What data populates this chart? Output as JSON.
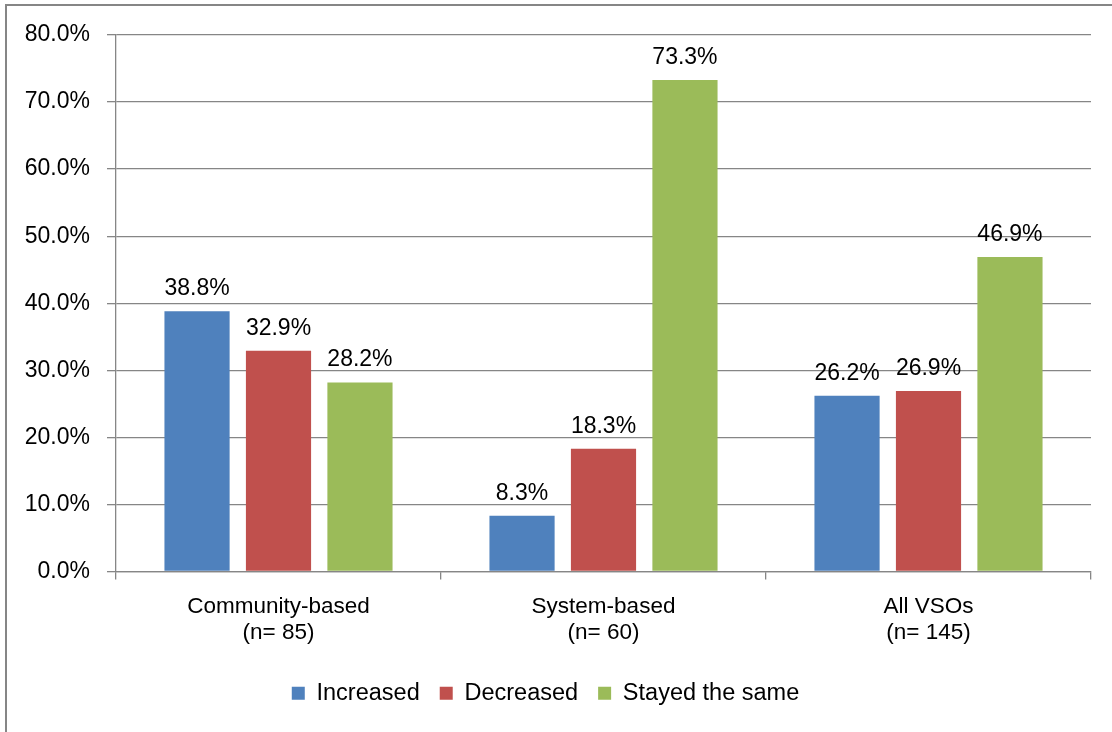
{
  "chart_data": {
    "type": "bar",
    "categories": [
      "Community-based\n(n= 85)",
      "System-based\n(n= 60)",
      "All VSOs\n(n= 145)"
    ],
    "series": [
      {
        "name": "Increased",
        "color": "#4f81bd",
        "values": [
          38.8,
          8.3,
          26.2
        ],
        "value_labels": [
          "38.8%",
          "8.3%",
          "26.2%"
        ]
      },
      {
        "name": "Decreased",
        "color": "#c0504d",
        "values": [
          32.9,
          18.3,
          26.9
        ],
        "value_labels": [
          "32.9%",
          "18.3%",
          "26.9%"
        ]
      },
      {
        "name": "Stayed the same",
        "color": "#9bbb59",
        "values": [
          28.2,
          73.3,
          46.9
        ],
        "value_labels": [
          "28.2%",
          "73.3%",
          "46.9%"
        ]
      }
    ],
    "ylim": [
      0,
      80
    ],
    "yticks": [
      {
        "value": 0,
        "label": "0.0%"
      },
      {
        "value": 10,
        "label": "10.0%"
      },
      {
        "value": 20,
        "label": "20.0%"
      },
      {
        "value": 30,
        "label": "30.0%"
      },
      {
        "value": 40,
        "label": "40.0%"
      },
      {
        "value": 50,
        "label": "50.0%"
      },
      {
        "value": 60,
        "label": "60.0%"
      },
      {
        "value": 70,
        "label": "70.0%"
      },
      {
        "value": 80,
        "label": "80.0%"
      }
    ],
    "grid": "y",
    "legend": "bottom"
  }
}
